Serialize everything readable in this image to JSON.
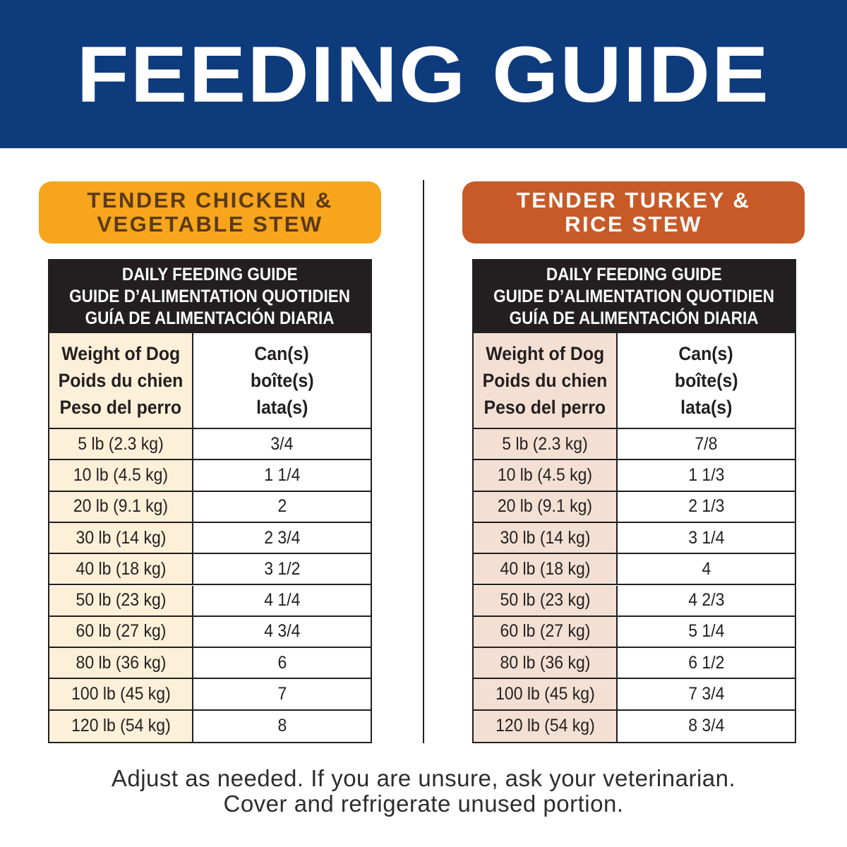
{
  "header": {
    "title": "FEEDING GUIDE"
  },
  "panels": [
    {
      "title": [
        "TENDER CHICKEN &",
        "VEGETABLE STEW"
      ],
      "table": {
        "header": [
          "DAILY FEEDING GUIDE",
          "GUIDE D’ALIMENTATION QUOTIDIEN",
          "GUÍA DE ALIMENTACIÓN DIARIA"
        ],
        "columns": [
          [
            "Weight of Dog",
            "Poids du chien",
            "Peso del perro"
          ],
          [
            "Can(s)",
            "boîte(s)",
            "lata(s)"
          ]
        ],
        "rows": [
          [
            "5 lb (2.3 kg)",
            "3/4"
          ],
          [
            "10 lb (4.5 kg)",
            "1 1/4"
          ],
          [
            "20 lb (9.1 kg)",
            "2"
          ],
          [
            "30 lb (14 kg)",
            "2 3/4"
          ],
          [
            "40 lb (18 kg)",
            "3 1/2"
          ],
          [
            "50 lb (23 kg)",
            "4 1/4"
          ],
          [
            "60 lb (27 kg)",
            "4 3/4"
          ],
          [
            "80 lb (36 kg)",
            "6"
          ],
          [
            "100 lb (45 kg)",
            "7"
          ],
          [
            "120 lb (54 kg)",
            "8"
          ]
        ]
      }
    },
    {
      "title": [
        "TENDER TURKEY &",
        "RICE STEW"
      ],
      "table": {
        "header": [
          "DAILY FEEDING GUIDE",
          "GUIDE D’ALIMENTATION QUOTIDIEN",
          "GUÍA DE ALIMENTACIÓN DIARIA"
        ],
        "columns": [
          [
            "Weight of Dog",
            "Poids du chien",
            "Peso del perro"
          ],
          [
            "Can(s)",
            "boîte(s)",
            "lata(s)"
          ]
        ],
        "rows": [
          [
            "5 lb (2.3 kg)",
            "7/8"
          ],
          [
            "10 lb (4.5 kg)",
            "1 1/3"
          ],
          [
            "20 lb (9.1 kg)",
            "2 1/3"
          ],
          [
            "30 lb (14 kg)",
            "3 1/4"
          ],
          [
            "40 lb (18 kg)",
            "4"
          ],
          [
            "50 lb (23 kg)",
            "4 2/3"
          ],
          [
            "60 lb (27 kg)",
            "5 1/4"
          ],
          [
            "80 lb (36 kg)",
            "6 1/2"
          ],
          [
            "100 lb (45 kg)",
            "7 3/4"
          ],
          [
            "120 lb (54 kg)",
            "8 3/4"
          ]
        ]
      }
    }
  ],
  "footer": [
    "Adjust as needed. If you are unsure, ask your veterinarian.",
    "Cover and refrigerate unused portion."
  ]
}
